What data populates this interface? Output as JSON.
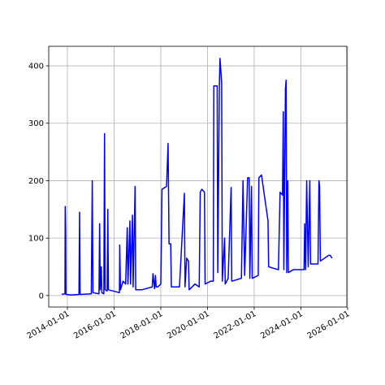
{
  "chart_data": {
    "type": "line",
    "color": "#0000ff",
    "grid": true,
    "x": [
      "2013-10-04",
      "2013-11-24",
      "2013-11-28",
      "2013-12-05",
      "2013-12-10",
      "2014-03-01",
      "2014-07-01",
      "2014-07-10",
      "2014-07-18",
      "2015-01-10",
      "2015-01-25",
      "2015-02-05",
      "2015-05-10",
      "2015-05-20",
      "2015-05-30",
      "2015-06-15",
      "2015-06-25",
      "2015-07-25",
      "2015-08-05",
      "2015-08-15",
      "2015-09-15",
      "2015-09-25",
      "2015-10-05",
      "2016-03-25",
      "2016-03-30",
      "2016-04-10",
      "2016-05-20",
      "2016-06-30",
      "2016-07-25",
      "2016-08-05",
      "2016-09-05",
      "2016-09-15",
      "2016-10-15",
      "2016-10-25",
      "2016-11-25",
      "2016-12-05",
      "2017-03-10",
      "2017-08-20",
      "2017-09-01",
      "2017-09-25",
      "2017-10-10",
      "2017-10-20",
      "2017-11-15",
      "2018-01-01",
      "2018-01-20",
      "2018-04-01",
      "2018-04-25",
      "2018-05-10",
      "2018-06-05",
      "2018-06-15",
      "2018-10-20",
      "2019-01-05",
      "2019-01-15",
      "2019-02-10",
      "2019-03-10",
      "2019-03-20",
      "2019-06-20",
      "2019-08-25",
      "2019-09-10",
      "2019-10-05",
      "2019-11-15",
      "2019-11-25",
      "2020-02-20",
      "2020-04-01",
      "2020-04-10",
      "2020-06-01",
      "2020-06-10",
      "2020-07-05",
      "2020-07-15",
      "2020-08-10",
      "2020-08-20",
      "2020-09-25",
      "2020-10-05",
      "2020-11-20",
      "2021-01-05",
      "2021-01-15",
      "2021-06-15",
      "2021-07-10",
      "2021-08-05",
      "2021-09-20",
      "2021-10-15",
      "2021-10-25",
      "2021-11-20",
      "2021-12-01",
      "2022-03-05",
      "2022-03-15",
      "2022-04-25",
      "2022-08-05",
      "2022-08-15",
      "2023-01-15",
      "2023-02-10",
      "2023-03-20",
      "2023-04-01",
      "2023-04-10",
      "2023-05-05",
      "2023-05-15",
      "2023-05-25",
      "2023-06-10",
      "2023-06-20",
      "2023-09-05",
      "2024-02-20",
      "2024-03-01",
      "2024-03-15",
      "2024-04-01",
      "2024-04-25",
      "2024-05-20",
      "2024-06-01",
      "2024-09-25",
      "2024-10-10",
      "2024-10-20",
      "2024-11-01",
      "2025-03-10",
      "2025-04-05",
      "2025-05-01"
    ],
    "values": [
      2,
      3,
      155,
      115,
      2,
      1,
      2,
      145,
      2,
      3,
      200,
      5,
      3,
      125,
      10,
      50,
      5,
      3,
      282,
      10,
      8,
      150,
      10,
      5,
      88,
      10,
      25,
      20,
      118,
      20,
      130,
      20,
      140,
      15,
      190,
      10,
      10,
      15,
      38,
      12,
      35,
      15,
      15,
      20,
      185,
      190,
      265,
      90,
      90,
      15,
      15,
      178,
      15,
      65,
      60,
      10,
      20,
      15,
      180,
      185,
      180,
      20,
      25,
      25,
      365,
      365,
      40,
      365,
      413,
      370,
      25,
      100,
      20,
      30,
      188,
      25,
      30,
      200,
      35,
      205,
      205,
      30,
      190,
      30,
      35,
      205,
      210,
      130,
      50,
      45,
      180,
      175,
      320,
      45,
      360,
      375,
      40,
      200,
      40,
      45,
      45,
      125,
      45,
      200,
      50,
      200,
      55,
      55,
      200,
      190,
      60,
      70,
      70,
      65
    ],
    "xlim": [
      "2013-03-15",
      "2025-12-20"
    ],
    "xticks": [
      "2014-01-01",
      "2016-01-01",
      "2018-01-01",
      "2020-01-01",
      "2022-01-01",
      "2024-01-01",
      "2026-01-01"
    ],
    "ylim": [
      -20,
      434
    ],
    "yticks": [
      0,
      100,
      200,
      300,
      400
    ]
  }
}
